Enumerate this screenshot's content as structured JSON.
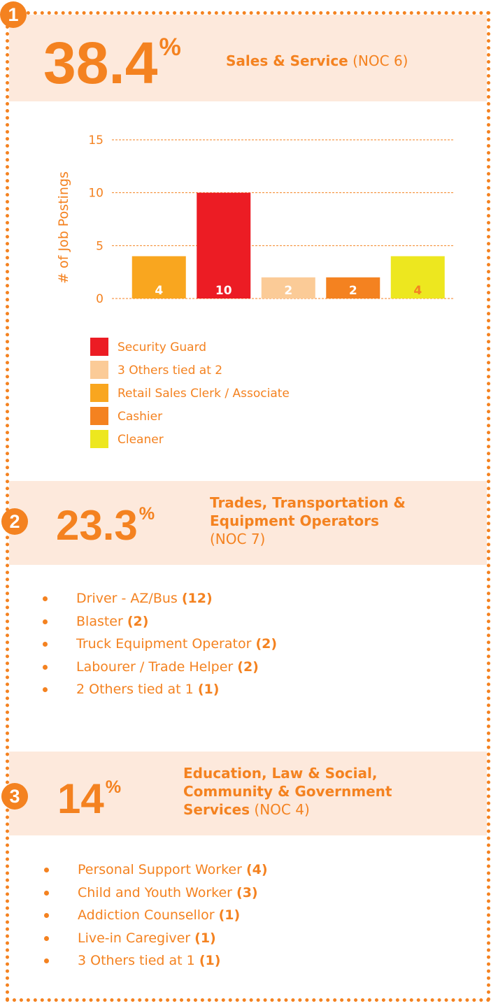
{
  "chart_data": {
    "type": "bar",
    "ylabel": "# of Job Postings",
    "categories": [
      null,
      null,
      null,
      null,
      null
    ],
    "values": [
      4,
      10,
      2,
      2,
      4
    ],
    "colors": [
      "#f9a61f",
      "#ec1c24",
      "#fbcb97",
      "#f48220",
      "#ede71f"
    ],
    "value_label_colors": [
      "#ffffff",
      "#ffffff",
      "#ffffff",
      "#ffffff",
      "#f48220"
    ],
    "ylim": [
      0,
      15
    ],
    "yticks": [
      0,
      5,
      10,
      15
    ],
    "grid": true,
    "legend": [
      {
        "name": "Security Guard",
        "color": "#ec1c24"
      },
      {
        "name": "3 Others tied at 2",
        "color": "#fbcb97"
      },
      {
        "name": "Retail Sales Clerk / Associate",
        "color": "#f9a61f"
      },
      {
        "name": "Cashier",
        "color": "#f48220"
      },
      {
        "name": "Cleaner",
        "color": "#ede71f"
      }
    ]
  },
  "sections": [
    {
      "number": "1",
      "value": "38.4",
      "unit": "%",
      "title": "Sales & Service",
      "code": "(NOC 6)"
    },
    {
      "number": "2",
      "value": "23.3",
      "unit": "%",
      "title": "Trades, Transportation & Equipment Operators",
      "code": "(NOC 7)",
      "items": [
        {
          "name": "Driver - AZ/Bus",
          "count": "(12)"
        },
        {
          "name": "Blaster",
          "count": "(2)"
        },
        {
          "name": "Truck Equipment Operator",
          "count": "(2)"
        },
        {
          "name": "Labourer / Trade Helper",
          "count": "(2)"
        },
        {
          "name": "2 Others tied at 1",
          "count": "(1)"
        }
      ]
    },
    {
      "number": "3",
      "value": "14",
      "unit": "%",
      "title": "Education, Law & Social, Community & Government Services",
      "code": "(NOC 4)",
      "items": [
        {
          "name": "Personal Support Worker",
          "count": "(4)"
        },
        {
          "name": "Child and Youth Worker",
          "count": "(3)"
        },
        {
          "name": "Addiction Counsellor",
          "count": "(1)"
        },
        {
          "name": "Live-in Caregiver",
          "count": "(1)"
        },
        {
          "name": "3 Others tied at 1",
          "count": "(1)"
        }
      ]
    }
  ]
}
